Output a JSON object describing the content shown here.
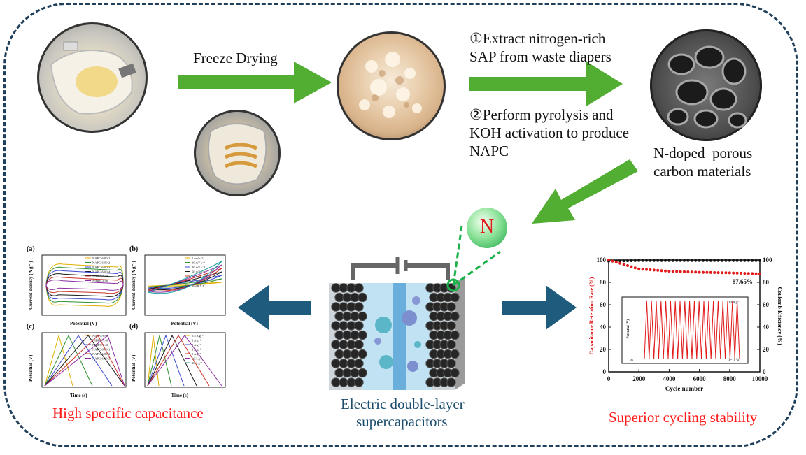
{
  "step1": {
    "label": "Freeze Drying"
  },
  "step2": {
    "line1": "①Extract nitrogen-rich",
    "line2": "SAP from waste diapers",
    "line3": "②Perform pyrolysis and",
    "line4": "KOH activation to produce",
    "line5": "NAPC"
  },
  "product": {
    "line1": "N-doped  porous",
    "line2": "carbon materials"
  },
  "nitrogen": {
    "symbol": "N"
  },
  "center": {
    "line1": "Electric double-layer",
    "line2": "supercapacitors"
  },
  "left_caption": "High specific capacitance",
  "right_caption": "Superior cycling stability",
  "panels": {
    "a": {
      "tag": "(a)",
      "ylabel": "Current density (A g⁻¹)",
      "xlabel": "Potential (V)",
      "legend": [
        "NAPC-6:00-1",
        "NAPC-6:00-2",
        "NAPC-6:00-3",
        "NAPC-6:00-4",
        "NIDPC-7:00",
        "NIDPC-8:00"
      ]
    },
    "b": {
      "tag": "(b)",
      "ylabel": "Current density (A g⁻¹)",
      "xlabel": "Potential (V)",
      "legend": [
        "5 mV s⁻¹",
        "10 mV s⁻¹",
        "20 mV s⁻¹",
        "50 mV s⁻¹",
        "100 mV s⁻¹",
        "150 mV s⁻¹",
        "200 mV s⁻¹"
      ]
    },
    "c": {
      "tag": "(c)",
      "ylabel": "Potential (V)",
      "xlabel": "Time (s)",
      "legend": [
        "NIDPC-6:00",
        "NIDPC-7:00",
        "NIDPC-8:00",
        "NAPC-6:00-1",
        "NAPC-6:00-2",
        "NAPC-6:00-3"
      ]
    },
    "d": {
      "tag": "(d)",
      "ylabel": "Potential (V)",
      "xlabel": "Time (s)",
      "legend": [
        "0.5 A g⁻¹",
        "1 A g⁻¹",
        "2 A g⁻¹",
        "3 A g⁻¹",
        "5 A g⁻¹",
        "10 A g⁻¹",
        "20 A g⁻¹"
      ]
    }
  },
  "cycle_chart": {
    "ylabel_left": "Capacitance Retention Rate (%)",
    "ylabel_right": "Coulomb Efficiency (%)",
    "xlabel": "Cycle number",
    "retention_label": "87.65%",
    "inset_label": "10 A g⁻¹",
    "inset_ylabel": "Potential (V)",
    "inset_start": "1st",
    "inset_end": "1~10⁴st"
  },
  "colors": {
    "arrow_green": "#52ae32",
    "arrow_blue": "#1e5b7c",
    "frame": "#1f3f5b",
    "red": "#ff1a1a"
  },
  "chart_data": {
    "type": "line",
    "x": [
      0,
      2000,
      4000,
      6000,
      8000,
      10000
    ],
    "series": [
      {
        "name": "Capacitance Retention Rate (%)",
        "values": [
          100,
          92,
          90,
          89,
          88.5,
          87.65
        ]
      },
      {
        "name": "Coulomb Efficiency (%)",
        "values": [
          99,
          99.5,
          99.5,
          99.5,
          99.5,
          99.5
        ]
      }
    ],
    "xlabel": "Cycle number",
    "ylabel": "Capacitance Retention Rate (%)",
    "y2label": "Coulomb Efficiency (%)",
    "xlim": [
      0,
      10000
    ],
    "ylim": [
      0,
      100
    ],
    "y2lim": [
      0,
      100
    ],
    "xticks": [
      "0",
      "2000",
      "4000",
      "6000",
      "8000",
      "10000"
    ],
    "yticks": [
      "0",
      "20",
      "40",
      "60",
      "80",
      "100"
    ],
    "y2ticks": [
      "0",
      "20",
      "40",
      "60",
      "80",
      "100"
    ],
    "annotations": [
      "87.65%"
    ]
  }
}
